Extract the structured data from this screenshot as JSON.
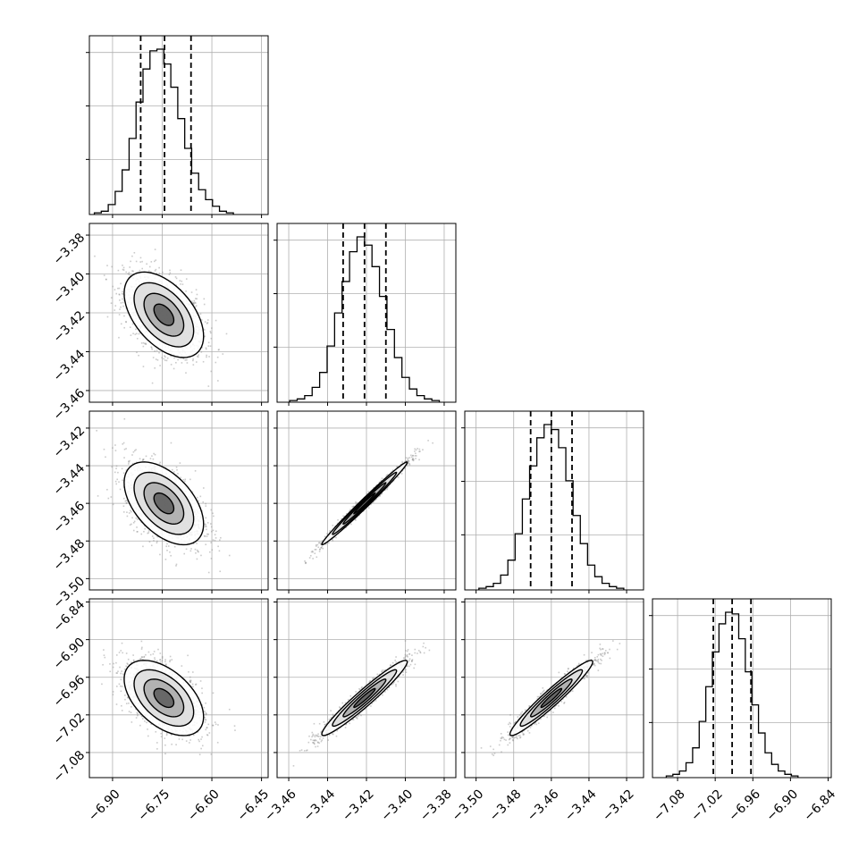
{
  "chart_data": {
    "type": "corner",
    "title": "",
    "grid": true,
    "colors": {
      "line": "#000000",
      "grid": "#b0b0b0",
      "points": "#8c8c8c"
    },
    "params": [
      {
        "index": 0,
        "range": [
          -6.97,
          -6.43
        ],
        "ticks": [
          -6.9,
          -6.75,
          -6.6,
          -6.45
        ],
        "tick_labels": [
          "−6.90",
          "−6.75",
          "−6.60",
          "−6.45"
        ],
        "center": -6.745,
        "sd": 0.06,
        "quantiles": [
          -6.815,
          -6.743,
          -6.663
        ]
      },
      {
        "index": 1,
        "range": [
          -3.466,
          -3.374
        ],
        "ticks": [
          -3.46,
          -3.44,
          -3.42,
          -3.4,
          -3.38
        ],
        "tick_labels": [
          "−3.46",
          "−3.44",
          "−3.42",
          "−3.40",
          "−3.38"
        ],
        "center": -3.421,
        "sd": 0.011,
        "quantiles": [
          -3.432,
          -3.421,
          -3.41
        ]
      },
      {
        "index": 2,
        "range": [
          -3.506,
          -3.411
        ],
        "ticks": [
          -3.5,
          -3.48,
          -3.46,
          -3.44,
          -3.42
        ],
        "tick_labels": [
          "−3.50",
          "−3.48",
          "−3.46",
          "−3.44",
          "−3.42"
        ],
        "center": -3.46,
        "sd": 0.011,
        "quantiles": [
          -3.471,
          -3.46,
          -3.449
        ]
      },
      {
        "index": 3,
        "range": [
          -7.12,
          -6.835
        ],
        "ticks": [
          -7.08,
          -7.02,
          -6.96,
          -6.9,
          -6.84
        ],
        "tick_labels": [
          "−7.08",
          "−7.02",
          "−6.96",
          "−6.90",
          "−6.84"
        ],
        "center": -6.993,
        "sd": 0.03,
        "quantiles": [
          -7.023,
          -6.993,
          -6.963
        ]
      }
    ],
    "correlations": [
      {
        "pair": [
          0,
          1
        ],
        "rho": -0.5
      },
      {
        "pair": [
          0,
          2
        ],
        "rho": -0.5
      },
      {
        "pair": [
          0,
          3
        ],
        "rho": -0.5
      },
      {
        "pair": [
          1,
          2
        ],
        "rho": 0.99
      },
      {
        "pair": [
          1,
          3
        ],
        "rho": 0.96
      },
      {
        "pair": [
          2,
          3
        ],
        "rho": 0.96
      }
    ],
    "histograms": [
      {
        "param": 0,
        "counts": [
          1,
          2,
          6,
          14,
          27,
          46,
          68,
          88,
          99,
          100,
          91,
          77,
          58,
          40,
          25,
          15,
          9,
          5,
          2,
          1
        ]
      },
      {
        "param": 1,
        "counts": [
          1,
          2,
          4,
          9,
          18,
          34,
          54,
          73,
          91,
          100,
          95,
          82,
          64,
          44,
          27,
          15,
          8,
          4,
          2,
          1
        ]
      },
      {
        "param": 2,
        "counts": [
          1,
          2,
          4,
          9,
          18,
          34,
          55,
          75,
          92,
          100,
          97,
          86,
          66,
          45,
          28,
          15,
          8,
          4,
          2,
          1
        ]
      },
      {
        "param": 3,
        "counts": [
          1,
          2,
          4,
          9,
          18,
          34,
          55,
          76,
          93,
          100,
          99,
          84,
          64,
          44,
          27,
          15,
          8,
          4,
          2,
          1
        ]
      }
    ],
    "contour_levels_sigma": [
      0.5,
      1.0,
      1.5,
      2.0
    ]
  }
}
